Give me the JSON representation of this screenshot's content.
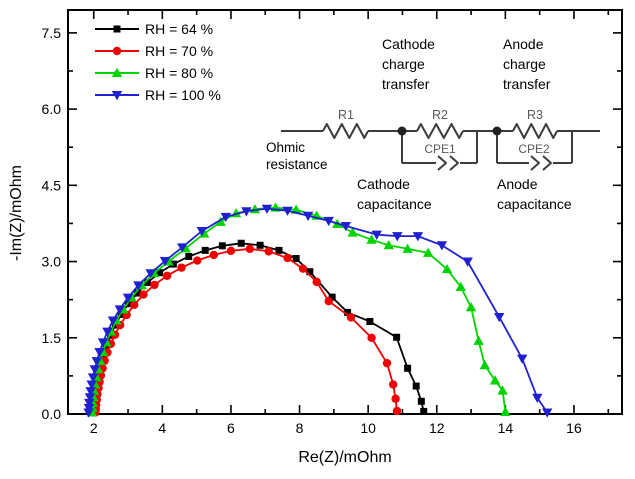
{
  "chart_data": {
    "type": "line",
    "title": "",
    "xlabel": "Re(Z)/mOhm",
    "ylabel": "-Im(Z)/mOhm",
    "xlim": [
      1.25,
      17.4
    ],
    "ylim": [
      0,
      7.95
    ],
    "grid": false,
    "legend_position": "top-left",
    "x_major_ticks": [
      2,
      4,
      6,
      8,
      10,
      12,
      14,
      16
    ],
    "x_tick_labels": [
      "2",
      "4",
      "6",
      "8",
      "10",
      "12",
      "14",
      "16"
    ],
    "x_minor_ticks": [
      3,
      5,
      7,
      9,
      11,
      13,
      15,
      17
    ],
    "y_major_ticks": [
      0,
      1.5,
      3.0,
      4.5,
      6.0,
      7.5
    ],
    "y_tick_labels": [
      "0.0",
      "1.5",
      "3.0",
      "4.5",
      "6.0",
      "7.5"
    ],
    "y_minor_ticks": [
      0.75,
      2.25,
      3.75,
      5.25,
      6.75
    ],
    "series": [
      {
        "name": "RH = 64 %",
        "color": "#000000",
        "marker": "square",
        "points": [
          [
            2.0,
            0.03
          ],
          [
            2.01,
            0.1
          ],
          [
            2.02,
            0.18
          ],
          [
            2.03,
            0.27
          ],
          [
            2.05,
            0.37
          ],
          [
            2.07,
            0.48
          ],
          [
            2.1,
            0.6
          ],
          [
            2.13,
            0.73
          ],
          [
            2.17,
            0.87
          ],
          [
            2.22,
            1.02
          ],
          [
            2.29,
            1.18
          ],
          [
            2.38,
            1.36
          ],
          [
            2.49,
            1.55
          ],
          [
            2.63,
            1.75
          ],
          [
            2.8,
            1.96
          ],
          [
            3.01,
            2.17
          ],
          [
            3.27,
            2.38
          ],
          [
            3.57,
            2.59
          ],
          [
            3.92,
            2.78
          ],
          [
            4.32,
            2.95
          ],
          [
            4.77,
            3.1
          ],
          [
            5.25,
            3.22
          ],
          [
            5.75,
            3.31
          ],
          [
            6.3,
            3.36
          ],
          [
            6.85,
            3.32
          ],
          [
            7.4,
            3.22
          ],
          [
            7.9,
            3.06
          ],
          [
            8.3,
            2.8
          ],
          [
            8.95,
            2.3
          ],
          [
            9.4,
            2.0
          ],
          [
            10.05,
            1.82
          ],
          [
            10.83,
            1.51
          ],
          [
            11.15,
            0.9
          ],
          [
            11.4,
            0.55
          ],
          [
            11.55,
            0.25
          ],
          [
            11.62,
            0.05
          ]
        ]
      },
      {
        "name": "RH = 70 %",
        "color": "#f00000",
        "marker": "circle",
        "points": [
          [
            2.05,
            0.03
          ],
          [
            2.06,
            0.1
          ],
          [
            2.07,
            0.18
          ],
          [
            2.09,
            0.28
          ],
          [
            2.11,
            0.39
          ],
          [
            2.14,
            0.51
          ],
          [
            2.17,
            0.63
          ],
          [
            2.21,
            0.76
          ],
          [
            2.26,
            0.9
          ],
          [
            2.32,
            1.05
          ],
          [
            2.4,
            1.21
          ],
          [
            2.5,
            1.38
          ],
          [
            2.62,
            1.56
          ],
          [
            2.77,
            1.75
          ],
          [
            2.96,
            1.95
          ],
          [
            3.18,
            2.15
          ],
          [
            3.45,
            2.35
          ],
          [
            3.77,
            2.54
          ],
          [
            4.14,
            2.72
          ],
          [
            4.56,
            2.88
          ],
          [
            5.02,
            3.02
          ],
          [
            5.5,
            3.13
          ],
          [
            6.0,
            3.21
          ],
          [
            6.55,
            3.25
          ],
          [
            7.1,
            3.2
          ],
          [
            7.65,
            3.07
          ],
          [
            8.1,
            2.86
          ],
          [
            8.5,
            2.6
          ],
          [
            8.85,
            2.22
          ],
          [
            9.5,
            1.9
          ],
          [
            10.1,
            1.5
          ],
          [
            10.55,
            1.0
          ],
          [
            10.73,
            0.58
          ],
          [
            10.8,
            0.3
          ],
          [
            10.84,
            0.06
          ]
        ]
      },
      {
        "name": "RH = 80 %",
        "color": "#00d400",
        "marker": "triangle-up",
        "points": [
          [
            1.95,
            0.03
          ],
          [
            1.96,
            0.12
          ],
          [
            1.97,
            0.22
          ],
          [
            1.99,
            0.33
          ],
          [
            2.01,
            0.45
          ],
          [
            2.04,
            0.58
          ],
          [
            2.08,
            0.72
          ],
          [
            2.13,
            0.88
          ],
          [
            2.19,
            1.04
          ],
          [
            2.27,
            1.22
          ],
          [
            2.37,
            1.41
          ],
          [
            2.5,
            1.62
          ],
          [
            2.66,
            1.84
          ],
          [
            2.86,
            2.06
          ],
          [
            3.1,
            2.29
          ],
          [
            3.4,
            2.53
          ],
          [
            3.76,
            2.77
          ],
          [
            4.18,
            3.0
          ],
          [
            4.68,
            3.26
          ],
          [
            5.22,
            3.55
          ],
          [
            5.7,
            3.78
          ],
          [
            6.15,
            3.95
          ],
          [
            6.7,
            4.03
          ],
          [
            7.3,
            4.06
          ],
          [
            7.9,
            4.02
          ],
          [
            8.5,
            3.9
          ],
          [
            9.1,
            3.74
          ],
          [
            9.55,
            3.57
          ],
          [
            10.1,
            3.43
          ],
          [
            10.6,
            3.32
          ],
          [
            11.15,
            3.25
          ],
          [
            11.75,
            3.17
          ],
          [
            12.3,
            2.85
          ],
          [
            12.7,
            2.5
          ],
          [
            13.0,
            2.1
          ],
          [
            13.22,
            1.44
          ],
          [
            13.4,
            0.96
          ],
          [
            13.7,
            0.66
          ],
          [
            13.92,
            0.46
          ],
          [
            14.0,
            0.04
          ]
        ]
      },
      {
        "name": "RH = 100 %",
        "color": "#2020d0",
        "marker": "triangle-down",
        "points": [
          [
            1.85,
            0.03
          ],
          [
            1.86,
            0.12
          ],
          [
            1.87,
            0.22
          ],
          [
            1.89,
            0.33
          ],
          [
            1.91,
            0.45
          ],
          [
            1.94,
            0.58
          ],
          [
            1.98,
            0.72
          ],
          [
            2.03,
            0.88
          ],
          [
            2.09,
            1.04
          ],
          [
            2.17,
            1.22
          ],
          [
            2.27,
            1.41
          ],
          [
            2.4,
            1.62
          ],
          [
            2.56,
            1.84
          ],
          [
            2.76,
            2.06
          ],
          [
            3.0,
            2.29
          ],
          [
            3.3,
            2.53
          ],
          [
            3.66,
            2.77
          ],
          [
            4.08,
            3.01
          ],
          [
            4.58,
            3.28
          ],
          [
            5.15,
            3.6
          ],
          [
            5.85,
            3.88
          ],
          [
            6.45,
            3.99
          ],
          [
            7.05,
            4.04
          ],
          [
            7.65,
            4.0
          ],
          [
            8.25,
            3.9
          ],
          [
            8.85,
            3.8
          ],
          [
            9.35,
            3.7
          ],
          [
            10.25,
            3.53
          ],
          [
            10.85,
            3.5
          ],
          [
            11.45,
            3.5
          ],
          [
            12.15,
            3.32
          ],
          [
            12.9,
            3.0
          ],
          [
            13.82,
            1.91
          ],
          [
            14.49,
            1.09
          ],
          [
            14.93,
            0.32
          ],
          [
            15.22,
            0.03
          ]
        ]
      }
    ]
  },
  "circuit": {
    "r1": "R1",
    "r2": "R2",
    "r3": "R3",
    "cpe1": "CPE1",
    "cpe2": "CPE2",
    "ohmic": [
      "Ohmic",
      "resistance"
    ],
    "cathode_charge": [
      "Cathode",
      "charge",
      "transfer"
    ],
    "anode_charge": [
      "Anode",
      "charge",
      "transfer"
    ],
    "cathode_cap": [
      "Cathode",
      "capacitance"
    ],
    "anode_cap": [
      "Anode",
      "capacitance"
    ],
    "line_color": "#3c3c3c"
  }
}
